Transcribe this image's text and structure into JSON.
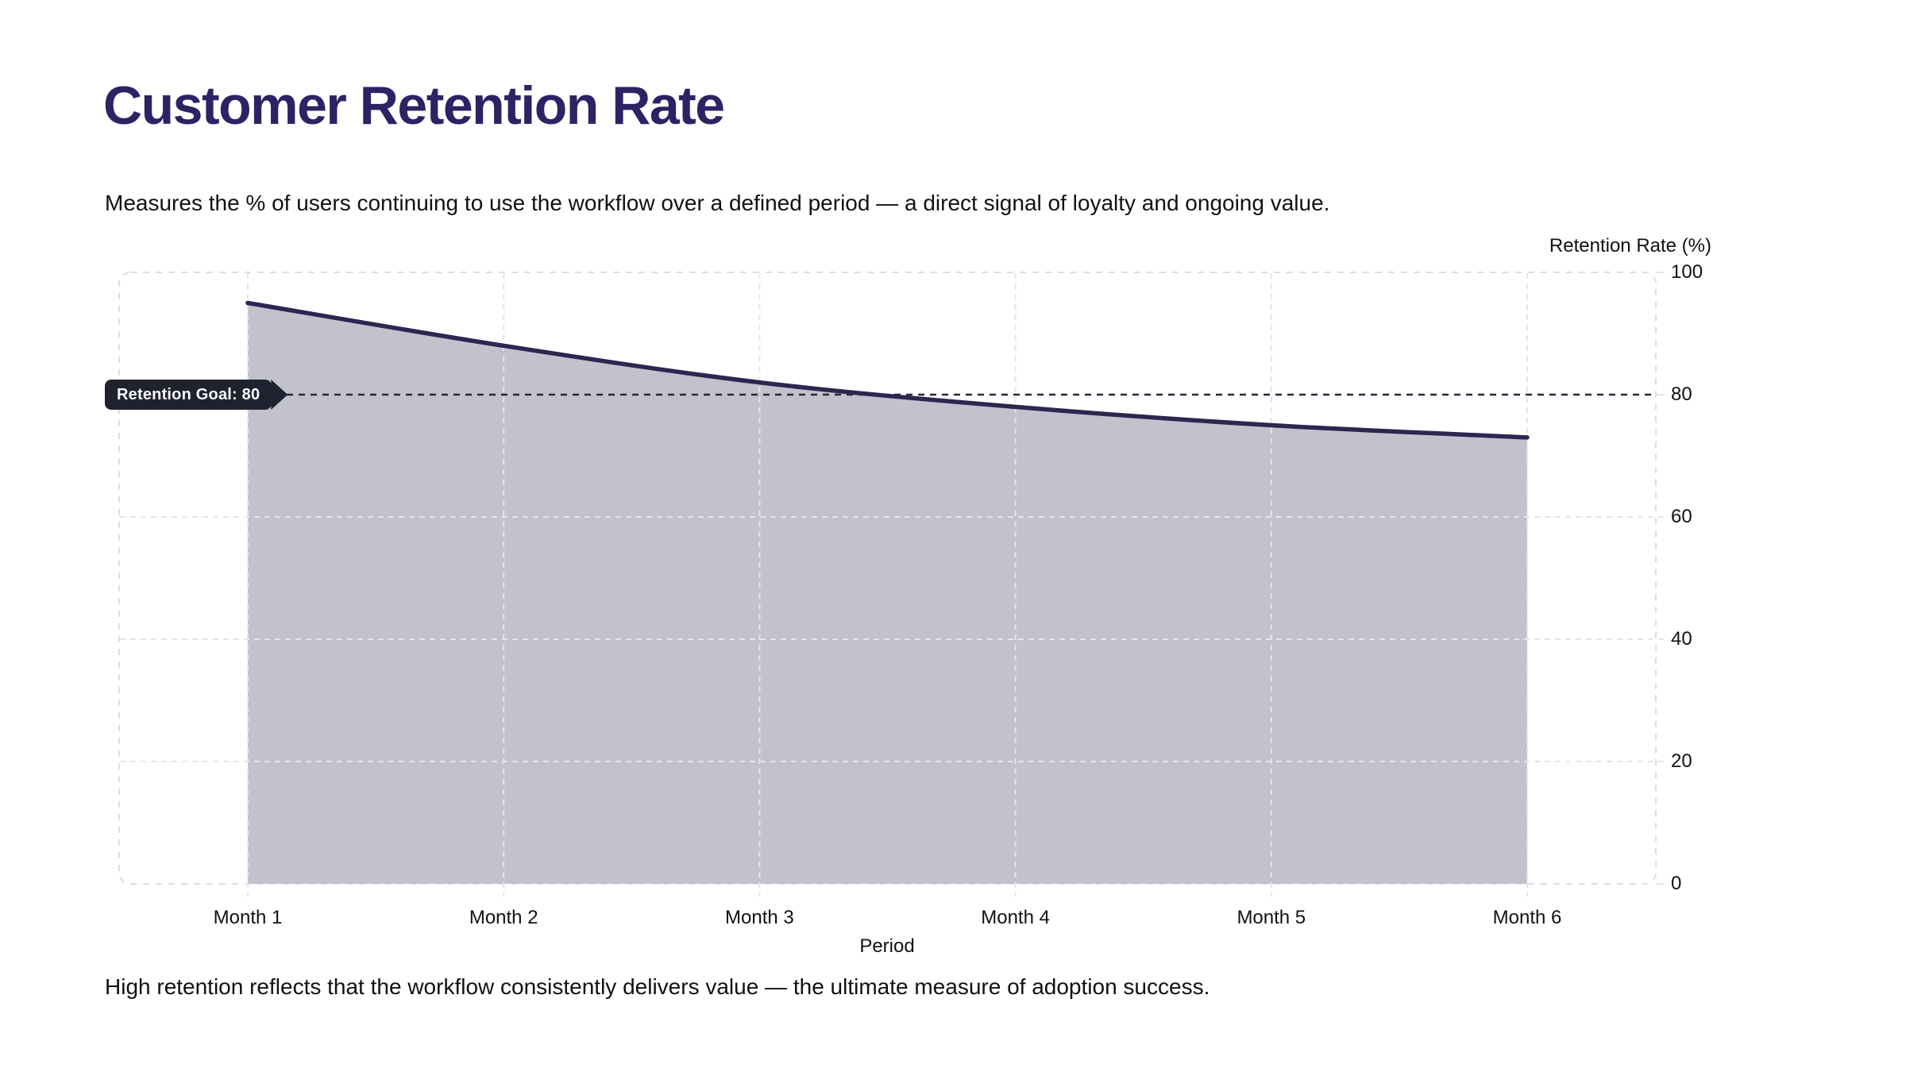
{
  "chart_data": {
    "type": "area",
    "title": "Customer Retention Rate",
    "subtitle": "Measures the % of users continuing to use the workflow over a defined period — a direct signal of loyalty and ongoing value.",
    "footnote": "High retention reflects that the workflow consistently delivers value — the ultimate measure of adoption success.",
    "categories": [
      "Month 1",
      "Month 2",
      "Month 3",
      "Month 4",
      "Month 5",
      "Month 6"
    ],
    "series": [
      {
        "name": "Retention Rate",
        "values": [
          95,
          88,
          82,
          78,
          75,
          73
        ]
      }
    ],
    "goal": {
      "label": "Retention Goal: 80",
      "value": 80
    },
    "xlabel": "Period",
    "ylabel": "Retention Rate (%)",
    "ylim": [
      0,
      100
    ],
    "yticks": [
      0,
      20,
      40,
      60,
      80,
      100
    ],
    "grid": true,
    "legend": "none",
    "colors": {
      "title": "#2e2264",
      "line": "#2b2750",
      "fill": "#c2c2cd",
      "grid": "#e4e4ea",
      "border": "#dedee2",
      "goal_line": "#272838",
      "badge_bg": "#20222f",
      "badge_text": "#f7f8fb",
      "text": "#101116"
    }
  }
}
